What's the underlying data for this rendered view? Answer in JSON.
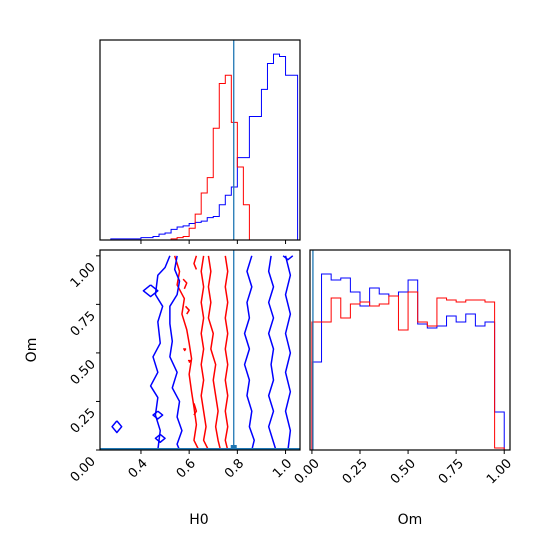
{
  "chart_data": [
    {
      "type": "histogram",
      "panel": "H0 marginal",
      "xlabel": "",
      "xlim": [
        0.23,
        1.06
      ],
      "x_ticks": [
        0.4,
        0.6,
        0.8,
        1.0
      ],
      "bin_edges": [
        0.25,
        0.275,
        0.3,
        0.325,
        0.35,
        0.375,
        0.4,
        0.425,
        0.45,
        0.475,
        0.5,
        0.525,
        0.55,
        0.575,
        0.6,
        0.625,
        0.65,
        0.675,
        0.7,
        0.725,
        0.75,
        0.775,
        0.8,
        0.825,
        0.85,
        0.875,
        0.9,
        0.925,
        0.95,
        0.975,
        1.0,
        1.025,
        1.05
      ],
      "series": [
        {
          "color": "#0000ff",
          "values": [
            0,
            1,
            1,
            1,
            1,
            1,
            2,
            2,
            3,
            5,
            6,
            9,
            11,
            12,
            14,
            15,
            16,
            19,
            20,
            30,
            38,
            45,
            70,
            70,
            105,
            105,
            128,
            150,
            158,
            156,
            140,
            140
          ]
        },
        {
          "color": "#ff0000",
          "values": [
            0,
            0,
            0,
            0,
            0,
            0,
            0,
            0,
            0,
            0,
            0,
            1,
            2,
            3,
            10,
            22,
            40,
            53,
            95,
            133,
            140,
            100,
            62,
            30,
            0,
            0,
            0,
            0,
            0,
            0,
            0,
            0
          ]
        }
      ],
      "ylim": [
        0,
        170
      ],
      "truth_line": {
        "x": 0.785,
        "color": "#1f77b4"
      }
    },
    {
      "type": "contour",
      "panel": "H0 vs Om",
      "xlabel": "H0",
      "ylabel": "Om",
      "xlim": [
        0.23,
        1.06
      ],
      "ylim": [
        0.0,
        1.03
      ],
      "x_ticks": [
        "0.4",
        "0.6",
        "0.8",
        "1.0"
      ],
      "y_ticks": [
        "0.00",
        "0.25",
        "0.50",
        "0.75",
        "1.00"
      ],
      "series": [
        {
          "color": "#ff0000",
          "contours": [
            [
              [
                0.54,
                1.0
              ],
              [
                0.56,
                0.92
              ],
              [
                0.55,
                0.85
              ],
              [
                0.58,
                0.78
              ],
              [
                0.57,
                0.7
              ],
              [
                0.59,
                0.62
              ],
              [
                0.6,
                0.55
              ],
              [
                0.61,
                0.47
              ],
              [
                0.6,
                0.39
              ],
              [
                0.61,
                0.3
              ],
              [
                0.62,
                0.22
              ],
              [
                0.63,
                0.13
              ],
              [
                0.62,
                0.05
              ],
              [
                0.64,
                0.0
              ]
            ],
            [
              [
                0.66,
                1.0
              ],
              [
                0.65,
                0.92
              ],
              [
                0.66,
                0.84
              ],
              [
                0.65,
                0.76
              ],
              [
                0.66,
                0.68
              ],
              [
                0.65,
                0.6
              ],
              [
                0.66,
                0.52
              ],
              [
                0.65,
                0.44
              ],
              [
                0.66,
                0.36
              ],
              [
                0.65,
                0.28
              ],
              [
                0.66,
                0.2
              ],
              [
                0.67,
                0.12
              ],
              [
                0.66,
                0.05
              ],
              [
                0.68,
                0.0
              ]
            ],
            [
              [
                0.68,
                1.0
              ],
              [
                0.69,
                0.92
              ],
              [
                0.68,
                0.84
              ],
              [
                0.69,
                0.76
              ],
              [
                0.68,
                0.68
              ],
              [
                0.7,
                0.6
              ],
              [
                0.69,
                0.52
              ],
              [
                0.71,
                0.44
              ],
              [
                0.7,
                0.36
              ],
              [
                0.71,
                0.28
              ],
              [
                0.72,
                0.2
              ],
              [
                0.71,
                0.12
              ],
              [
                0.72,
                0.05
              ],
              [
                0.73,
                0.0
              ]
            ],
            [
              [
                0.75,
                1.0
              ],
              [
                0.76,
                0.92
              ],
              [
                0.75,
                0.84
              ],
              [
                0.76,
                0.76
              ],
              [
                0.75,
                0.68
              ],
              [
                0.76,
                0.6
              ],
              [
                0.75,
                0.52
              ],
              [
                0.76,
                0.44
              ],
              [
                0.75,
                0.36
              ],
              [
                0.76,
                0.28
              ],
              [
                0.75,
                0.2
              ],
              [
                0.76,
                0.12
              ],
              [
                0.75,
                0.05
              ],
              [
                0.76,
                0.0
              ]
            ],
            [
              [
                0.63,
                1.0
              ],
              [
                0.62,
                0.96
              ],
              [
                0.63,
                0.93
              ]
            ],
            [
              [
                0.575,
                0.88
              ],
              [
                0.59,
                0.86
              ],
              [
                0.58,
                0.83
              ]
            ],
            [
              [
                0.585,
                0.74
              ],
              [
                0.6,
                0.72
              ],
              [
                0.59,
                0.7
              ]
            ],
            [
              [
                0.575,
                0.52
              ],
              [
                0.585,
                0.52
              ],
              [
                0.58,
                0.51
              ]
            ],
            [
              [
                0.595,
                0.46
              ],
              [
                0.605,
                0.46
              ],
              [
                0.6,
                0.45
              ]
            ],
            [
              [
                0.62,
                0.24
              ],
              [
                0.63,
                0.2
              ],
              [
                0.62,
                0.18
              ]
            ]
          ]
        },
        {
          "color": "#0000ff",
          "contours": [
            [
              [
                0.55,
                1.0
              ],
              [
                0.54,
                0.93
              ],
              [
                0.56,
                0.87
              ],
              [
                0.55,
                0.8
              ],
              [
                0.52,
                0.74
              ],
              [
                0.52,
                0.65
              ],
              [
                0.53,
                0.56
              ],
              [
                0.52,
                0.48
              ],
              [
                0.55,
                0.4
              ],
              [
                0.53,
                0.32
              ],
              [
                0.56,
                0.25
              ],
              [
                0.55,
                0.17
              ],
              [
                0.57,
                0.1
              ],
              [
                0.55,
                0.03
              ],
              [
                0.56,
                0.0
              ]
            ],
            [
              [
                0.52,
                1.0
              ],
              [
                0.5,
                0.94
              ],
              [
                0.47,
                0.9
              ],
              [
                0.46,
                0.8
              ],
              [
                0.49,
                0.74
              ],
              [
                0.47,
                0.66
              ],
              [
                0.48,
                0.55
              ],
              [
                0.45,
                0.48
              ],
              [
                0.47,
                0.4
              ],
              [
                0.44,
                0.33
              ],
              [
                0.47,
                0.27
              ],
              [
                0.46,
                0.18
              ],
              [
                0.48,
                0.1
              ],
              [
                0.47,
                0.0
              ]
            ],
            [
              [
                0.86,
                1.0
              ],
              [
                0.84,
                0.92
              ],
              [
                0.86,
                0.84
              ],
              [
                0.84,
                0.76
              ],
              [
                0.85,
                0.68
              ],
              [
                0.83,
                0.6
              ],
              [
                0.85,
                0.52
              ],
              [
                0.83,
                0.44
              ],
              [
                0.85,
                0.36
              ],
              [
                0.84,
                0.28
              ],
              [
                0.86,
                0.2
              ],
              [
                0.85,
                0.12
              ],
              [
                0.87,
                0.05
              ],
              [
                0.86,
                0.0
              ]
            ],
            [
              [
                0.94,
                1.0
              ],
              [
                0.93,
                0.92
              ],
              [
                0.95,
                0.84
              ],
              [
                0.93,
                0.76
              ],
              [
                0.95,
                0.68
              ],
              [
                0.93,
                0.6
              ],
              [
                0.95,
                0.52
              ],
              [
                0.94,
                0.44
              ],
              [
                0.95,
                0.36
              ],
              [
                0.93,
                0.28
              ],
              [
                0.95,
                0.2
              ],
              [
                0.93,
                0.12
              ],
              [
                0.95,
                0.04
              ],
              [
                0.96,
                0.0
              ]
            ],
            [
              [
                1.0,
                1.0
              ],
              [
                1.02,
                0.9
              ],
              [
                1.0,
                0.8
              ],
              [
                1.02,
                0.7
              ],
              [
                1.0,
                0.6
              ],
              [
                1.02,
                0.5
              ],
              [
                1.0,
                0.4
              ],
              [
                1.02,
                0.3
              ],
              [
                1.0,
                0.2
              ],
              [
                1.02,
                0.1
              ],
              [
                1.01,
                0.0
              ]
            ],
            [
              [
                0.44,
                0.85
              ],
              [
                0.47,
                0.82
              ],
              [
                0.44,
                0.79
              ],
              [
                0.41,
                0.82
              ],
              [
                0.44,
                0.85
              ]
            ],
            [
              [
                0.3,
                0.15
              ],
              [
                0.32,
                0.12
              ],
              [
                0.3,
                0.09
              ],
              [
                0.28,
                0.12
              ],
              [
                0.3,
                0.15
              ]
            ],
            [
              [
                0.48,
                0.08
              ],
              [
                0.5,
                0.06
              ],
              [
                0.48,
                0.04
              ],
              [
                0.46,
                0.06
              ],
              [
                0.48,
                0.08
              ]
            ],
            [
              [
                0.47,
                0.2
              ],
              [
                0.49,
                0.18
              ],
              [
                0.47,
                0.16
              ],
              [
                0.45,
                0.18
              ],
              [
                0.47,
                0.2
              ]
            ],
            [
              [
                0.99,
                1.0
              ],
              [
                1.01,
                0.98
              ],
              [
                1.03,
                1.0
              ]
            ]
          ]
        }
      ],
      "truth_lines": [
        {
          "x": 0.785,
          "orientation": "vertical",
          "color": "#1f77b4"
        },
        {
          "y": 0.0,
          "orientation": "horizontal",
          "color": "#1f77b4"
        }
      ]
    },
    {
      "type": "histogram",
      "panel": "Om marginal",
      "xlabel": "Om",
      "xlim": [
        -0.01,
        1.03
      ],
      "x_ticks": [
        "0.00",
        "0.25",
        "0.50",
        "0.75",
        "1.00"
      ],
      "bin_edges": [
        0.0,
        0.05,
        0.1,
        0.15,
        0.2,
        0.25,
        0.3,
        0.35,
        0.4,
        0.45,
        0.5,
        0.55,
        0.6,
        0.65,
        0.7,
        0.75,
        0.8,
        0.85,
        0.9,
        0.95,
        1.0
      ],
      "series": [
        {
          "color": "#0000ff",
          "values": [
            44,
            88,
            85,
            86,
            79,
            72,
            81,
            78,
            77,
            79,
            85,
            63,
            61,
            62,
            67,
            64,
            68,
            62,
            64,
            19
          ]
        },
        {
          "color": "#ff0000",
          "values": [
            64,
            64,
            76,
            66,
            73,
            74,
            72,
            73,
            77,
            60,
            79,
            64,
            62,
            76,
            75,
            74,
            75,
            75,
            74,
            1
          ]
        }
      ],
      "ylim": [
        0,
        100
      ],
      "truth_line": {
        "x": 0.0,
        "color": "#1f77b4"
      }
    }
  ]
}
